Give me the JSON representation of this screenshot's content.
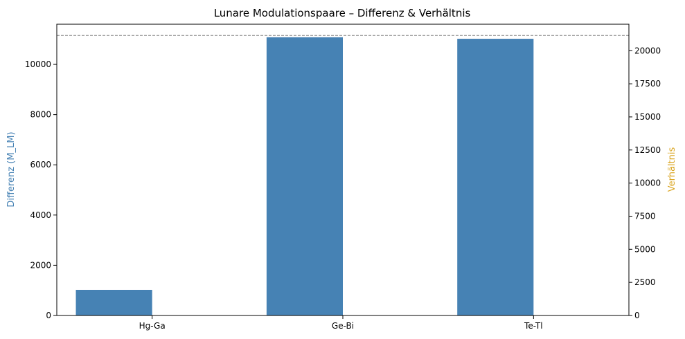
{
  "chart_data": {
    "type": "bar",
    "title": "Lunare Modulationspaare – Differenz & Verhältnis",
    "categories": [
      "Hg-Ga",
      "Ge-Bi",
      "Te-Tl"
    ],
    "series": [
      {
        "name": "Differenz (M_LM)",
        "axis": "left",
        "color": "#4682b4",
        "values": [
          1020,
          11080,
          11020
        ]
      },
      {
        "name": "Verhältnis",
        "axis": "right",
        "color": "#daa520",
        "values": [
          1.04,
          1.92,
          1.95
        ]
      }
    ],
    "ylabel": "Differenz (M_LM)",
    "ylabel_color": "#4682b4",
    "ylim": [
      0,
      11600
    ],
    "yticks": [
      0,
      2000,
      4000,
      6000,
      8000,
      10000
    ],
    "y2label": "Verhältnis",
    "y2label_color": "#daa520",
    "y2lim": [
      0,
      22000
    ],
    "y2ticks": [
      0,
      2500,
      5000,
      7500,
      10000,
      12500,
      15000,
      17500,
      20000
    ],
    "reference_line": {
      "axis": "right",
      "value": 21150,
      "style": "dashed",
      "color": "#808080"
    },
    "grid": false,
    "legend": "none"
  }
}
